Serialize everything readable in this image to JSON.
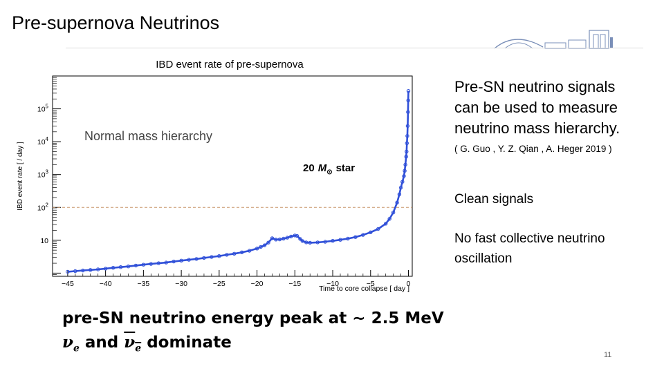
{
  "slide": {
    "title": "Pre-supernova Neutrinos",
    "page_number": "11"
  },
  "side": {
    "line1": "Pre-SN neutrino signals",
    "line2": "can be used to measure",
    "line3": "neutrino mass hierarchy.",
    "citation": "( G. Guo , Y. Z. Qian , A. Heger 2019 )",
    "bullet1": "Clean signals",
    "bullet2_line1": "No fast collective neutrino",
    "bullet2_line2": "oscillation"
  },
  "bottom": {
    "line1": "pre-SN neutrino energy peak at ~ 2.5 MeV",
    "nu_symbol": "ν",
    "nu_sub": "e",
    "and_word": "and",
    "dominate_word": "dominate"
  },
  "colors": {
    "data_series": "#2f4fd8",
    "threshold_line": "#c8956a"
  },
  "chart_data": {
    "type": "scatter",
    "title": "IBD event rate of pre-supernova",
    "xlabel": "Time to core collapse [ day ]",
    "ylabel": "IBD event rate [ / day ]",
    "xlim": [
      -47,
      0.5
    ],
    "ylim": [
      0.8,
      1000000
    ],
    "y_scale": "log",
    "x_ticks": [
      -45,
      -40,
      -35,
      -30,
      -25,
      -20,
      -15,
      -10,
      -5,
      0
    ],
    "x_tick_labels": [
      "−45",
      "−40",
      "−35",
      "−30",
      "−25",
      "−20",
      "−15",
      "−10",
      "−5",
      "0"
    ],
    "y_tick_base": "10",
    "y_ticks": [
      {
        "value": 10,
        "exp": ""
      },
      {
        "value": 100,
        "exp": "2"
      },
      {
        "value": 1000,
        "exp": "3"
      },
      {
        "value": 10000,
        "exp": "4"
      },
      {
        "value": 100000,
        "exp": "5"
      }
    ],
    "annotation_label": "Normal mass hierarchy",
    "star_label_prefix": "20",
    "star_label_symbol": "M",
    "star_label_subscript": "⊙",
    "star_label_suffix": "star",
    "threshold": 100,
    "series": [
      {
        "name": "Normal mass hierarchy",
        "points": [
          [
            -45,
            1.1
          ],
          [
            -44,
            1.15
          ],
          [
            -43,
            1.2
          ],
          [
            -42,
            1.25
          ],
          [
            -41,
            1.3
          ],
          [
            -40,
            1.37
          ],
          [
            -39,
            1.45
          ],
          [
            -38,
            1.52
          ],
          [
            -37,
            1.6
          ],
          [
            -36,
            1.7
          ],
          [
            -35,
            1.8
          ],
          [
            -34,
            1.9
          ],
          [
            -33,
            2.0
          ],
          [
            -32,
            2.1
          ],
          [
            -31,
            2.25
          ],
          [
            -30,
            2.4
          ],
          [
            -29,
            2.55
          ],
          [
            -28,
            2.7
          ],
          [
            -27,
            2.9
          ],
          [
            -26,
            3.1
          ],
          [
            -25,
            3.3
          ],
          [
            -24,
            3.6
          ],
          [
            -23,
            3.9
          ],
          [
            -22,
            4.3
          ],
          [
            -21,
            4.8
          ],
          [
            -20,
            5.6
          ],
          [
            -19.5,
            6.3
          ],
          [
            -19,
            7.0
          ],
          [
            -18.5,
            8.5
          ],
          [
            -18,
            11.5
          ],
          [
            -17.5,
            10.5
          ],
          [
            -17,
            10.6
          ],
          [
            -16.5,
            11.2
          ],
          [
            -16,
            12.0
          ],
          [
            -15.5,
            13.0
          ],
          [
            -15,
            14.0
          ],
          [
            -14.7,
            13.5
          ],
          [
            -14.3,
            11.0
          ],
          [
            -14,
            9.5
          ],
          [
            -13.5,
            8.6
          ],
          [
            -13,
            8.4
          ],
          [
            -12,
            8.6
          ],
          [
            -11,
            9.0
          ],
          [
            -10,
            9.6
          ],
          [
            -9,
            10.3
          ],
          [
            -8,
            11.2
          ],
          [
            -7,
            12.5
          ],
          [
            -6,
            14.5
          ],
          [
            -5,
            17.5
          ],
          [
            -4,
            22
          ],
          [
            -3,
            32
          ],
          [
            -2.5,
            45
          ],
          [
            -2,
            70
          ],
          [
            -1.5,
            140
          ],
          [
            -1.2,
            250
          ],
          [
            -1,
            400
          ],
          [
            -0.8,
            600
          ],
          [
            -0.6,
            900
          ],
          [
            -0.5,
            1300
          ],
          [
            -0.4,
            2000
          ],
          [
            -0.3,
            3500
          ],
          [
            -0.25,
            5000
          ],
          [
            -0.2,
            9000
          ],
          [
            -0.15,
            15000
          ],
          [
            -0.1,
            30000
          ],
          [
            -0.06,
            80000
          ],
          [
            -0.03,
            180000
          ],
          [
            0,
            350000
          ]
        ]
      }
    ]
  }
}
